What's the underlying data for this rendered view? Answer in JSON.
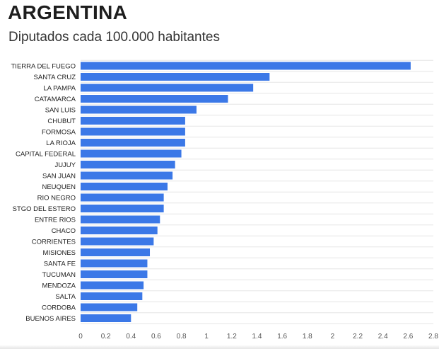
{
  "header": {
    "title": "ARGENTINA",
    "subtitle": "Diputados cada 100.000 habitantes"
  },
  "colors": {
    "bar": "#3b78e7",
    "grid": "#e6e6e6",
    "text": "#222222",
    "axis_text": "#555555"
  },
  "chart_data": {
    "type": "bar",
    "orientation": "horizontal",
    "title": "ARGENTINA",
    "subtitle": "Diputados cada 100.000 habitantes",
    "xlabel": "",
    "ylabel": "",
    "xlim": [
      0,
      2.8
    ],
    "xticks": [
      0,
      0.2,
      0.4,
      0.6,
      0.8,
      1,
      1.2,
      1.4,
      1.6,
      1.8,
      2,
      2.2,
      2.4,
      2.6,
      2.8
    ],
    "xtick_labels": [
      "0",
      "0.2",
      "0.4",
      "0.6",
      "0.8",
      "1",
      "1.2",
      "1.4",
      "1.6",
      "1.8",
      "2",
      "2.2",
      "2.4",
      "2.6",
      "2.8"
    ],
    "grid": true,
    "categories": [
      "TIERRA DEL FUEGO",
      "SANTA CRUZ",
      "LA PAMPA",
      "CATAMARCA",
      "SAN LUIS",
      "CHUBUT",
      "FORMOSA",
      "LA RIOJA",
      "CAPITAL FEDERAL",
      "JUJUY",
      "SAN JUAN",
      "NEUQUEN",
      "RIO NEGRO",
      "STGO DEL ESTERO",
      "ENTRE RIOS",
      "CHACO",
      "CORRIENTES",
      "MISIONES",
      "SANTA FE",
      "TUCUMAN",
      "MENDOZA",
      "SALTA",
      "CORDOBA",
      "BUENOS AIRES"
    ],
    "values": [
      2.62,
      1.5,
      1.37,
      1.17,
      0.92,
      0.83,
      0.83,
      0.83,
      0.8,
      0.75,
      0.73,
      0.69,
      0.66,
      0.66,
      0.63,
      0.61,
      0.58,
      0.55,
      0.53,
      0.53,
      0.5,
      0.49,
      0.45,
      0.4
    ]
  }
}
